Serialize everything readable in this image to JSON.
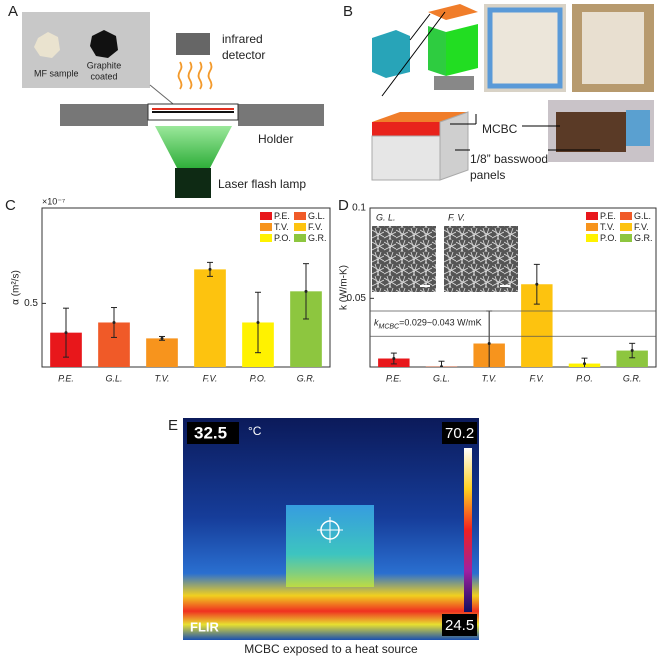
{
  "panels": {
    "A": {
      "label": "A",
      "sample_1": "MF sample",
      "sample_2": [
        "Graphite",
        "coated"
      ],
      "detector": [
        "infrared",
        "detector"
      ],
      "holder": "Holder",
      "lamp": "Laser flash lamp"
    },
    "B": {
      "label": "B",
      "material": "MCBC",
      "panels": [
        "1/8” basswood",
        "panels"
      ]
    },
    "C": {
      "label": "C"
    },
    "D": {
      "label": "D"
    },
    "E": {
      "label": "E",
      "spot": "32.5",
      "unit": "°C",
      "max": "70.2",
      "min": "24.5",
      "brand": "FLIR",
      "caption": "MCBC exposed to a heat source"
    }
  },
  "chart_data": [
    {
      "type": "bar",
      "y_label": "α (m²/s)",
      "y_multiplier": "×10⁻⁷",
      "categories": [
        "P.E.",
        "G.L.",
        "T.V.",
        "F.V.",
        "P.O.",
        "G.R."
      ],
      "colors": [
        "#e8171b",
        "#f05a28",
        "#f7941d",
        "#fdc30f",
        "#fff200",
        "#8dc63f"
      ],
      "values": [
        0.408,
        0.44,
        0.39,
        0.607,
        0.44,
        0.538
      ],
      "errors": [
        0.077,
        0.047,
        0.006,
        0.022,
        0.095,
        0.087
      ],
      "ylim": [
        0.3,
        0.8
      ],
      "yticks": [
        0.5
      ],
      "legend": "top-right"
    },
    {
      "type": "bar",
      "y_label": "k (W/m-K)",
      "categories": [
        "P.E.",
        "G.L.",
        "T.V.",
        "F.V.",
        "P.O.",
        "G.R."
      ],
      "colors": [
        "#e8171b",
        "#f05a28",
        "#f7941d",
        "#fdc30f",
        "#fff200",
        "#8dc63f"
      ],
      "values": [
        0.0167,
        0.0122,
        0.025,
        0.0578,
        0.0139,
        0.0211
      ],
      "errors": [
        0.003,
        0.003,
        0.018,
        0.011,
        0.003,
        0.004
      ],
      "ylim": [
        0.012,
        0.1
      ],
      "yticks": [
        0.05,
        0.1
      ],
      "legend": "top-right",
      "ref_lines": [
        0.029,
        0.043
      ],
      "annotation": {
        "symbol": "k",
        "subscript": "MCBC",
        "text": "=0.029~0.043 W/mK"
      },
      "inset_labels": [
        "G. L.",
        "F. V."
      ]
    }
  ]
}
